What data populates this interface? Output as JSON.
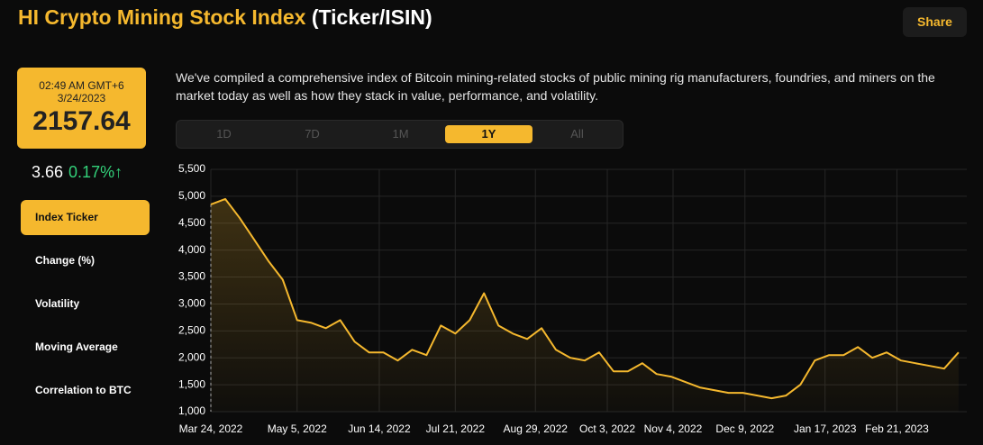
{
  "header": {
    "title": "HI Crypto Mining Stock Index",
    "subtitle": "(Ticker/ISIN)",
    "share": "Share"
  },
  "quote": {
    "time": "02:49 AM GMT+6",
    "date": "3/24/2023",
    "value": "2157.64",
    "change": "3.66",
    "change_pct": "0.17%↑"
  },
  "nav": [
    "Index Ticker",
    "Change (%)",
    "Volatility",
    "Moving Average",
    "Correlation to BTC"
  ],
  "nav_active": 0,
  "description": "We've compiled a comprehensive index of Bitcoin mining-related stocks of public mining rig manufacturers, foundries, and miners on the market today as well as how they stack in value, performance, and volatility.",
  "tabs": [
    "1D",
    "7D",
    "1M",
    "1Y",
    "All"
  ],
  "tab_active": 3,
  "chart_data": {
    "type": "line",
    "color": "#f5b82e",
    "grid": true,
    "x": [
      "2022-03-24",
      "2022-03-31",
      "2022-04-07",
      "2022-04-14",
      "2022-04-21",
      "2022-04-28",
      "2022-05-05",
      "2022-05-12",
      "2022-05-19",
      "2022-05-26",
      "2022-06-02",
      "2022-06-09",
      "2022-06-16",
      "2022-06-23",
      "2022-06-30",
      "2022-07-07",
      "2022-07-14",
      "2022-07-21",
      "2022-07-28",
      "2022-08-04",
      "2022-08-11",
      "2022-08-18",
      "2022-08-25",
      "2022-09-01",
      "2022-09-08",
      "2022-09-15",
      "2022-09-22",
      "2022-09-29",
      "2022-10-06",
      "2022-10-13",
      "2022-10-20",
      "2022-10-27",
      "2022-11-03",
      "2022-11-10",
      "2022-11-17",
      "2022-11-24",
      "2022-12-01",
      "2022-12-08",
      "2022-12-15",
      "2022-12-22",
      "2022-12-29",
      "2023-01-05",
      "2023-01-12",
      "2023-01-19",
      "2023-01-26",
      "2023-02-02",
      "2023-02-09",
      "2023-02-16",
      "2023-02-23",
      "2023-03-02",
      "2023-03-09",
      "2023-03-16",
      "2023-03-23"
    ],
    "values": [
      4850,
      4950,
      4600,
      4200,
      3800,
      3450,
      2700,
      2650,
      2550,
      2700,
      2300,
      2100,
      2100,
      1950,
      2150,
      2050,
      2600,
      2450,
      2700,
      3200,
      2600,
      2450,
      2350,
      2550,
      2150,
      2000,
      1950,
      2100,
      1750,
      1750,
      1900,
      1700,
      1650,
      1550,
      1450,
      1400,
      1350,
      1350,
      1300,
      1250,
      1300,
      1500,
      1950,
      2050,
      2050,
      2200,
      2000,
      2100,
      1950,
      1900,
      1850,
      1800,
      2100
    ],
    "xlim": [
      "2022-03-24",
      "2023-03-27"
    ],
    "xticks": [
      {
        "value": "2022-03-24",
        "label": "Mar 24, 2022"
      },
      {
        "value": "2022-05-05",
        "label": "May 5, 2022"
      },
      {
        "value": "2022-06-14",
        "label": "Jun 14, 2022"
      },
      {
        "value": "2022-07-21",
        "label": "Jul 21, 2022"
      },
      {
        "value": "2022-08-29",
        "label": "Aug 29, 2022"
      },
      {
        "value": "2022-10-03",
        "label": "Oct 3, 2022"
      },
      {
        "value": "2022-11-04",
        "label": "Nov 4, 2022"
      },
      {
        "value": "2022-12-09",
        "label": "Dec 9, 2022"
      },
      {
        "value": "2023-01-17",
        "label": "Jan 17, 2023"
      },
      {
        "value": "2023-02-21",
        "label": "Feb 21, 2023"
      }
    ],
    "ylim": [
      1000,
      5500
    ],
    "yticks": [
      {
        "value": 1000,
        "label": "1,000"
      },
      {
        "value": 1500,
        "label": "1,500"
      },
      {
        "value": 2000,
        "label": "2,000"
      },
      {
        "value": 2500,
        "label": "2,500"
      },
      {
        "value": 3000,
        "label": "3,000"
      },
      {
        "value": 3500,
        "label": "3,500"
      },
      {
        "value": 4000,
        "label": "4,000"
      },
      {
        "value": 4500,
        "label": "4,500"
      },
      {
        "value": 5000,
        "label": "5,000"
      },
      {
        "value": 5500,
        "label": "5,500"
      }
    ]
  }
}
